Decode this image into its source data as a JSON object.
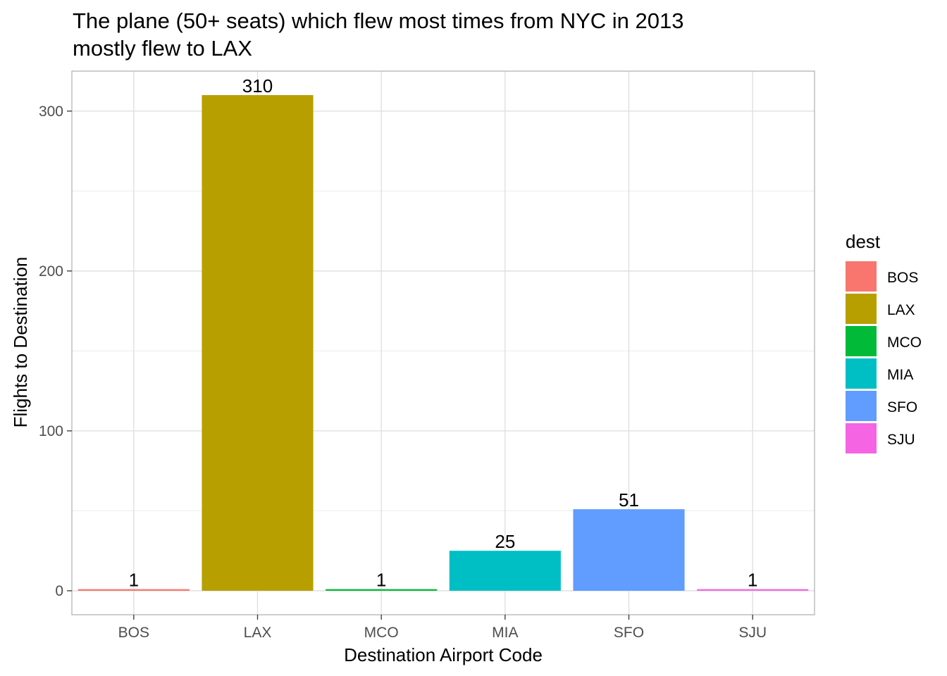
{
  "chart_data": {
    "type": "bar",
    "title_lines": [
      "The plane (50+ seats) which flew most times from NYC in 2013",
      "mostly flew to LAX"
    ],
    "xlabel": "Destination Airport Code",
    "ylabel": "Flights to Destination",
    "categories": [
      "BOS",
      "LAX",
      "MCO",
      "MIA",
      "SFO",
      "SJU"
    ],
    "values": [
      1,
      310,
      1,
      25,
      51,
      1
    ],
    "colors": [
      "#F8766D",
      "#B79F00",
      "#00BA38",
      "#00BFC4",
      "#619CFF",
      "#F564E3"
    ],
    "ylim": [
      -15,
      325
    ],
    "y_ticks": [
      0,
      100,
      200,
      300
    ],
    "grid": true,
    "legend": {
      "title": "dest",
      "placement": "right",
      "entries": [
        "BOS",
        "LAX",
        "MCO",
        "MIA",
        "SFO",
        "SJU"
      ]
    }
  }
}
